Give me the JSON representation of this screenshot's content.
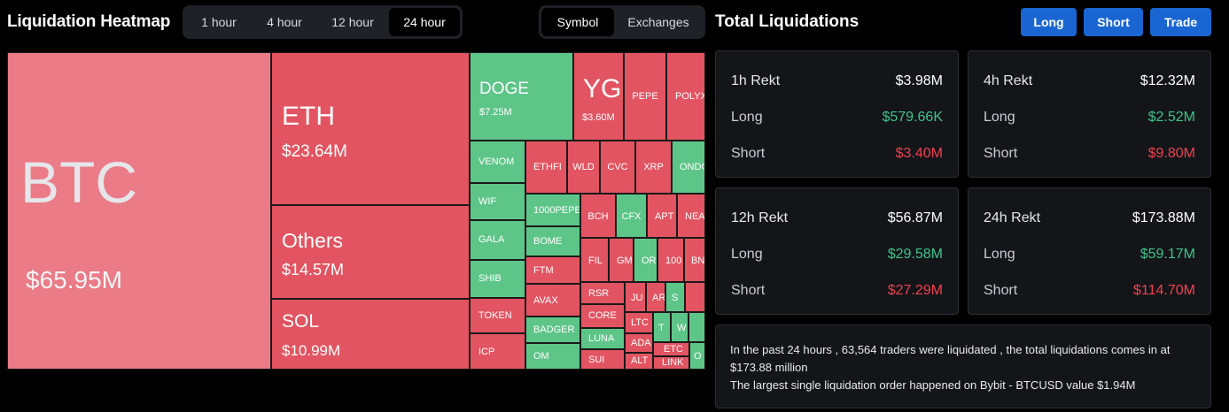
{
  "header": {
    "title": "Liquidation Heatmap",
    "timeframes": [
      "1 hour",
      "4 hour",
      "12 hour",
      "24 hour"
    ],
    "active_timeframe": "24 hour",
    "views": [
      "Symbol",
      "Exchanges"
    ],
    "active_view": "Symbol"
  },
  "right": {
    "title": "Total Liquidations",
    "buttons": {
      "long": "Long",
      "short": "Short",
      "trade": "Trade"
    }
  },
  "colors": {
    "loss": "#e25461",
    "gain": "#5ec588",
    "btc": "#ea7b87",
    "accent": "#1966d2"
  },
  "heatmap": {
    "btc": {
      "symbol": "BTC",
      "value": "$65.95M"
    },
    "eth": {
      "symbol": "ETH",
      "value": "$23.64M"
    },
    "others": {
      "symbol": "Others",
      "value": "$14.57M"
    },
    "sol": {
      "symbol": "SOL",
      "value": "$10.99M"
    },
    "doge": {
      "symbol": "DOGE",
      "value": "$7.25M"
    },
    "ygg": {
      "symbol": "YGG",
      "value": "$3.60M"
    },
    "small": {
      "pepe": "PEPE",
      "polyx": "POLYX",
      "venom": "VENOM",
      "wif": "WIF",
      "gala": "GALA",
      "shib": "SHIB",
      "token": "TOKEN",
      "icp": "ICP",
      "ethfi": "ETHFI",
      "wld": "WLD",
      "cvc": "CVC",
      "xrp": "XRP",
      "ondo": "ONDO",
      "pepe1000": "1000PEPE",
      "bch": "BCH",
      "cfx": "CFX",
      "apt": "APT",
      "near": "NEAR",
      "bome": "BOME",
      "fil": "FIL",
      "gm": "GM",
      "or": "OR",
      "n100": "100",
      "bn": "BN",
      "ftm": "FTM",
      "rsr": "RSR",
      "ju": "JU",
      "ar": "AR",
      "s": "S",
      "avax": "AVAX",
      "core": "CORE",
      "ltc": "LTC",
      "t": "T",
      "w": "W",
      "badger": "BADGER",
      "luna": "LUNA",
      "ada": "ADA",
      "etc": "ETC",
      "o": "O",
      "om": "OM",
      "sui": "SUI",
      "alt": "ALT",
      "link": "LINK"
    }
  },
  "cards": [
    {
      "title": "1h Rekt",
      "total": "$3.98M",
      "long_label": "Long",
      "long": "$579.66K",
      "short_label": "Short",
      "short": "$3.40M"
    },
    {
      "title": "4h Rekt",
      "total": "$12.32M",
      "long_label": "Long",
      "long": "$2.52M",
      "short_label": "Short",
      "short": "$9.80M"
    },
    {
      "title": "12h Rekt",
      "total": "$56.87M",
      "long_label": "Long",
      "long": "$29.58M",
      "short_label": "Short",
      "short": "$27.29M"
    },
    {
      "title": "24h Rekt",
      "total": "$173.88M",
      "long_label": "Long",
      "long": "$59.17M",
      "short_label": "Short",
      "short": "$114.70M"
    }
  ],
  "summary": {
    "line1": "In the past 24 hours , 63,564 traders were liquidated , the total liquidations comes in at",
    "line2": "$173.88 million",
    "line3": "The largest single liquidation order happened on Bybit - BTCUSD value $1.94M"
  }
}
